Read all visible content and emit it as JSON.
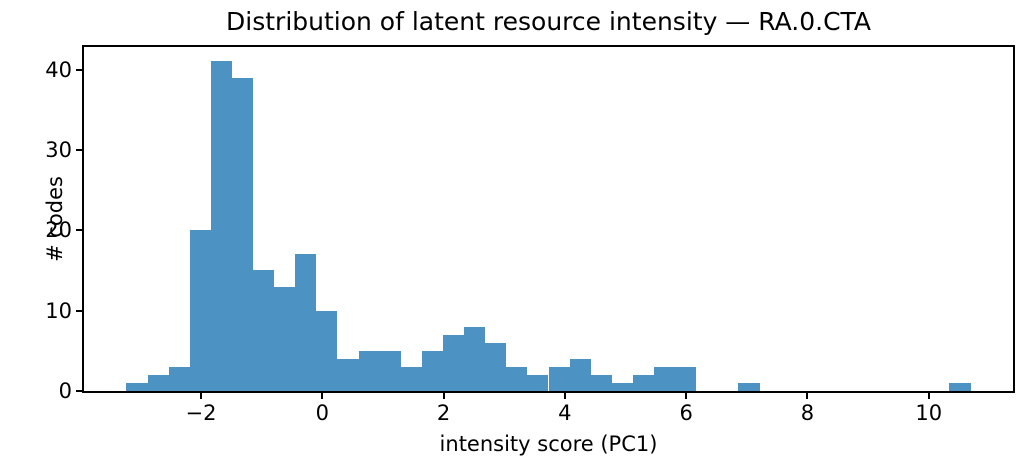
{
  "chart_data": {
    "type": "bar",
    "subtype": "histogram",
    "title": "Distribution of latent resource intensity — RA.0.CTA",
    "xlabel": "intensity score (PC1)",
    "ylabel": "# codes",
    "bin_start": -3.23,
    "bin_width": 0.348,
    "counts": [
      1,
      2,
      3,
      20,
      41,
      39,
      15,
      13,
      17,
      10,
      4,
      5,
      5,
      3,
      5,
      7,
      8,
      6,
      3,
      2,
      3,
      4,
      2,
      1,
      2,
      3,
      3,
      0,
      0,
      1,
      0,
      0,
      0,
      0,
      0,
      0,
      0,
      0,
      0,
      1
    ],
    "xlim": [
      -3.93,
      11.39
    ],
    "ylim": [
      0,
      42.8
    ],
    "xticks": [
      {
        "value": -2,
        "label": "−2"
      },
      {
        "value": 0,
        "label": "0"
      },
      {
        "value": 2,
        "label": "2"
      },
      {
        "value": 4,
        "label": "4"
      },
      {
        "value": 6,
        "label": "6"
      },
      {
        "value": 8,
        "label": "8"
      },
      {
        "value": 10,
        "label": "10"
      }
    ],
    "yticks": [
      {
        "value": 0,
        "label": "0"
      },
      {
        "value": 10,
        "label": "10"
      },
      {
        "value": 20,
        "label": "20"
      },
      {
        "value": 30,
        "label": "30"
      },
      {
        "value": 40,
        "label": "40"
      }
    ],
    "bar_color": "#4c92c3",
    "axis_color": "#000000",
    "grid": false,
    "legend_position": "none"
  }
}
